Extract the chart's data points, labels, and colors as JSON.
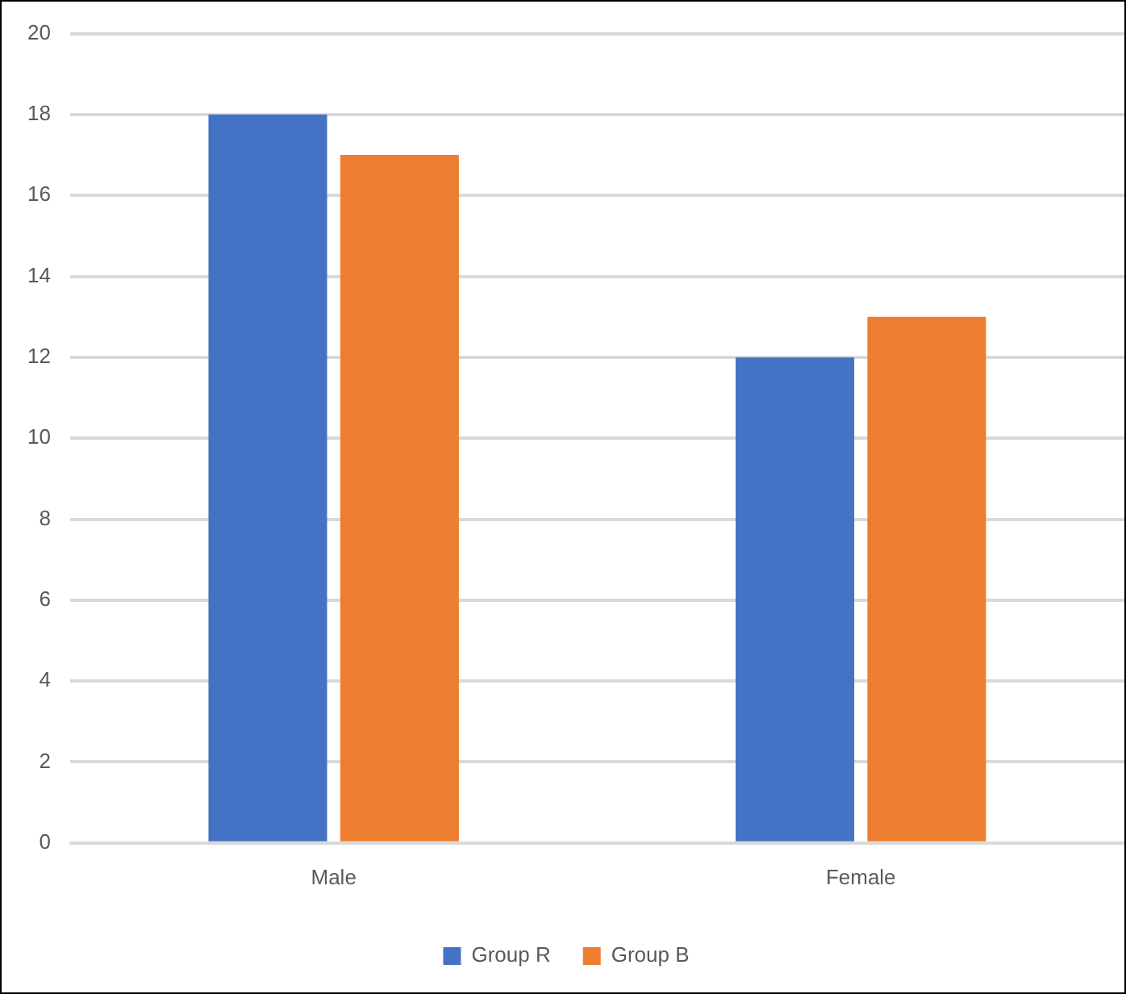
{
  "chart_data": {
    "type": "bar",
    "categories": [
      "Male",
      "Female"
    ],
    "series": [
      {
        "name": "Group R",
        "color": "#4472c4",
        "values": [
          18,
          12
        ]
      },
      {
        "name": "Group B",
        "color": "#ed7d31",
        "values": [
          17,
          13
        ]
      }
    ],
    "ylim": [
      0,
      20
    ],
    "yticks": [
      0,
      2,
      4,
      6,
      8,
      10,
      12,
      14,
      16,
      18,
      20
    ],
    "grid": "y",
    "legend": "bottom"
  }
}
